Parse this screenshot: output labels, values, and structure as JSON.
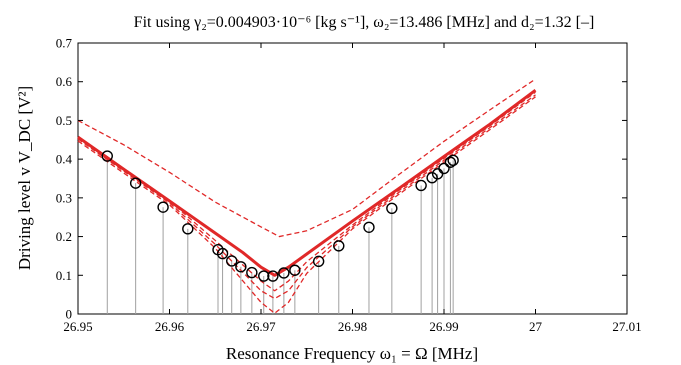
{
  "chart_data": {
    "type": "line",
    "title": "Fit using γ₂=0.004903·10⁻⁶ [kg s⁻¹], ω₂=13.486 [MHz] and d₂=1.32 [–]",
    "xlabel": "Resonance Frequency ω₁ = Ω [MHz]",
    "ylabel": "Driving level v V_DC [V²]",
    "xlim": [
      26.95,
      27.01
    ],
    "ylim": [
      0,
      0.7
    ],
    "x_ticks": [
      26.95,
      26.96,
      26.97,
      26.98,
      26.99,
      27,
      27.01
    ],
    "x_tick_labels": [
      "26.95",
      "26.96",
      "26.97",
      "26.98",
      "26.99",
      "27",
      "27.01"
    ],
    "y_ticks": [
      0,
      0.1,
      0.2,
      0.3,
      0.4,
      0.5,
      0.6,
      0.7
    ],
    "y_tick_labels": [
      "0",
      "0.1",
      "0.2",
      "0.3",
      "0.4",
      "0.5",
      "0.6",
      "0.7"
    ],
    "grid": false,
    "legend": "none",
    "colors": {
      "fit": "#e02828",
      "markers": "#000000",
      "stems": "#a0a0a0"
    },
    "fit_center": 26.9715,
    "fit_min": 0.1,
    "fit_slope": 16.5,
    "series": [
      {
        "role": "measured",
        "style": "circle-marker-with-stem",
        "points": [
          {
            "x": 26.9532,
            "y": 0.408
          },
          {
            "x": 26.9563,
            "y": 0.338
          },
          {
            "x": 26.9593,
            "y": 0.276
          },
          {
            "x": 26.962,
            "y": 0.22
          },
          {
            "x": 26.9653,
            "y": 0.166
          },
          {
            "x": 26.9658,
            "y": 0.156
          },
          {
            "x": 26.9668,
            "y": 0.137
          },
          {
            "x": 26.9678,
            "y": 0.122
          },
          {
            "x": 26.969,
            "y": 0.107
          },
          {
            "x": 26.9703,
            "y": 0.098
          },
          {
            "x": 26.9713,
            "y": 0.098
          },
          {
            "x": 26.9725,
            "y": 0.106
          },
          {
            "x": 26.9737,
            "y": 0.113
          },
          {
            "x": 26.9763,
            "y": 0.136
          },
          {
            "x": 26.9785,
            "y": 0.176
          },
          {
            "x": 26.9818,
            "y": 0.224
          },
          {
            "x": 26.9843,
            "y": 0.273
          },
          {
            "x": 26.9875,
            "y": 0.332
          },
          {
            "x": 26.9887,
            "y": 0.352
          },
          {
            "x": 26.9893,
            "y": 0.362
          },
          {
            "x": 26.99,
            "y": 0.376
          },
          {
            "x": 26.9907,
            "y": 0.392
          },
          {
            "x": 26.991,
            "y": 0.397
          }
        ]
      },
      {
        "role": "fit",
        "style": "solid",
        "points": [
          {
            "x": 26.95,
            "y": 0.457
          },
          {
            "x": 26.955,
            "y": 0.374
          },
          {
            "x": 26.96,
            "y": 0.292
          },
          {
            "x": 26.965,
            "y": 0.209
          },
          {
            "x": 26.968,
            "y": 0.159
          },
          {
            "x": 26.97,
            "y": 0.121
          },
          {
            "x": 26.9715,
            "y": 0.1
          },
          {
            "x": 26.973,
            "y": 0.121
          },
          {
            "x": 26.975,
            "y": 0.155
          },
          {
            "x": 26.98,
            "y": 0.24
          },
          {
            "x": 26.985,
            "y": 0.323
          },
          {
            "x": 26.99,
            "y": 0.407
          },
          {
            "x": 26.995,
            "y": 0.49
          },
          {
            "x": 27.0,
            "y": 0.578
          }
        ]
      },
      {
        "role": "bound",
        "style": "dashed",
        "points": [
          {
            "x": 26.95,
            "y": 0.5
          },
          {
            "x": 26.955,
            "y": 0.437
          },
          {
            "x": 26.96,
            "y": 0.366
          },
          {
            "x": 26.965,
            "y": 0.289
          },
          {
            "x": 26.97,
            "y": 0.225
          },
          {
            "x": 26.972,
            "y": 0.2
          },
          {
            "x": 26.975,
            "y": 0.215
          },
          {
            "x": 26.98,
            "y": 0.27
          },
          {
            "x": 26.985,
            "y": 0.359
          },
          {
            "x": 26.99,
            "y": 0.446
          },
          {
            "x": 26.995,
            "y": 0.527
          },
          {
            "x": 27.0,
            "y": 0.607
          }
        ]
      },
      {
        "role": "bound",
        "style": "dashed",
        "points": [
          {
            "x": 26.95,
            "y": 0.457
          },
          {
            "x": 26.955,
            "y": 0.374
          },
          {
            "x": 26.96,
            "y": 0.292
          },
          {
            "x": 26.965,
            "y": 0.19
          },
          {
            "x": 26.97,
            "y": 0.085
          },
          {
            "x": 26.9715,
            "y": 0.06
          },
          {
            "x": 26.973,
            "y": 0.085
          },
          {
            "x": 26.975,
            "y": 0.135
          },
          {
            "x": 26.98,
            "y": 0.23
          },
          {
            "x": 26.985,
            "y": 0.318
          },
          {
            "x": 26.99,
            "y": 0.402
          },
          {
            "x": 26.995,
            "y": 0.486
          },
          {
            "x": 27.0,
            "y": 0.573
          }
        ]
      },
      {
        "role": "bound",
        "style": "dashed",
        "points": [
          {
            "x": 26.95,
            "y": 0.452
          },
          {
            "x": 26.955,
            "y": 0.369
          },
          {
            "x": 26.96,
            "y": 0.287
          },
          {
            "x": 26.965,
            "y": 0.18
          },
          {
            "x": 26.97,
            "y": 0.06
          },
          {
            "x": 26.9715,
            "y": 0.04
          },
          {
            "x": 26.973,
            "y": 0.06
          },
          {
            "x": 26.975,
            "y": 0.12
          },
          {
            "x": 26.98,
            "y": 0.225
          },
          {
            "x": 26.985,
            "y": 0.313
          },
          {
            "x": 26.99,
            "y": 0.397
          },
          {
            "x": 26.995,
            "y": 0.481
          },
          {
            "x": 27.0,
            "y": 0.566
          }
        ]
      },
      {
        "role": "bound",
        "style": "dashed",
        "points": [
          {
            "x": 26.95,
            "y": 0.447
          },
          {
            "x": 26.955,
            "y": 0.364
          },
          {
            "x": 26.96,
            "y": 0.282
          },
          {
            "x": 26.965,
            "y": 0.17
          },
          {
            "x": 26.97,
            "y": 0.03
          },
          {
            "x": 26.9715,
            "y": 0.002
          },
          {
            "x": 26.973,
            "y": 0.03
          },
          {
            "x": 26.975,
            "y": 0.105
          },
          {
            "x": 26.98,
            "y": 0.22
          },
          {
            "x": 26.985,
            "y": 0.308
          },
          {
            "x": 26.99,
            "y": 0.392
          },
          {
            "x": 26.995,
            "y": 0.476
          },
          {
            "x": 27.0,
            "y": 0.561
          }
        ]
      }
    ]
  }
}
